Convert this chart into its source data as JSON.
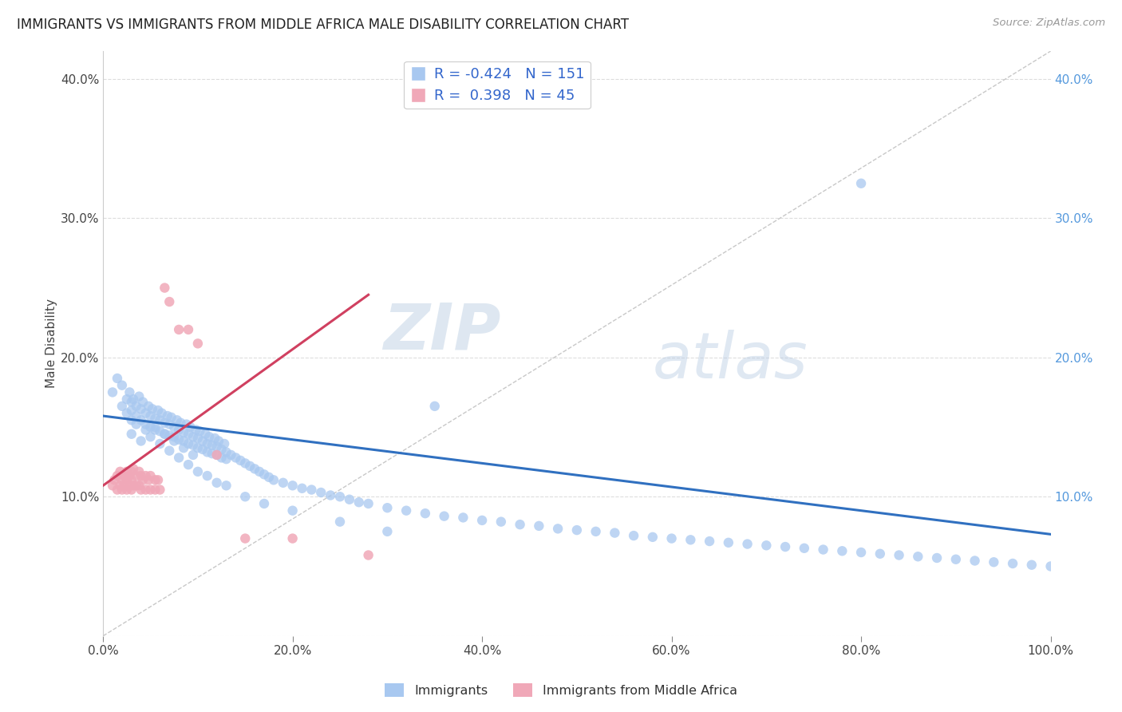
{
  "title": "IMMIGRANTS VS IMMIGRANTS FROM MIDDLE AFRICA MALE DISABILITY CORRELATION CHART",
  "source": "Source: ZipAtlas.com",
  "xlabel": "",
  "ylabel": "Male Disability",
  "xlim": [
    0,
    1.0
  ],
  "ylim": [
    0,
    0.42
  ],
  "xtick_vals": [
    0.0,
    0.2,
    0.4,
    0.6,
    0.8,
    1.0
  ],
  "xtick_labels": [
    "0.0%",
    "20.0%",
    "40.0%",
    "60.0%",
    "80.0%",
    "100.0%"
  ],
  "ytick_vals": [
    0.0,
    0.1,
    0.2,
    0.3,
    0.4
  ],
  "ytick_labels": [
    "",
    "10.0%",
    "20.0%",
    "30.0%",
    "40.0%"
  ],
  "legend1_r": "-0.424",
  "legend1_n": "151",
  "legend2_r": "0.398",
  "legend2_n": "45",
  "blue_color": "#a8c8f0",
  "pink_color": "#f0a8b8",
  "blue_line_color": "#3070c0",
  "pink_line_color": "#d04060",
  "diagonal_color": "#c8c8c8",
  "watermark_zip": "ZIP",
  "watermark_atlas": "atlas",
  "title_fontsize": 12,
  "blue_scatter_x": [
    0.01,
    0.015,
    0.02,
    0.02,
    0.025,
    0.025,
    0.028,
    0.03,
    0.03,
    0.03,
    0.032,
    0.035,
    0.035,
    0.038,
    0.04,
    0.04,
    0.042,
    0.045,
    0.045,
    0.048,
    0.05,
    0.05,
    0.052,
    0.055,
    0.055,
    0.058,
    0.06,
    0.06,
    0.062,
    0.065,
    0.065,
    0.068,
    0.07,
    0.07,
    0.072,
    0.075,
    0.075,
    0.078,
    0.08,
    0.08,
    0.082,
    0.085,
    0.085,
    0.088,
    0.09,
    0.09,
    0.092,
    0.095,
    0.095,
    0.098,
    0.1,
    0.1,
    0.102,
    0.105,
    0.105,
    0.108,
    0.11,
    0.11,
    0.112,
    0.115,
    0.115,
    0.118,
    0.12,
    0.12,
    0.122,
    0.125,
    0.125,
    0.128,
    0.13,
    0.13,
    0.135,
    0.14,
    0.145,
    0.15,
    0.155,
    0.16,
    0.165,
    0.17,
    0.175,
    0.18,
    0.19,
    0.2,
    0.21,
    0.22,
    0.23,
    0.24,
    0.25,
    0.26,
    0.27,
    0.28,
    0.3,
    0.32,
    0.34,
    0.36,
    0.38,
    0.4,
    0.42,
    0.44,
    0.46,
    0.48,
    0.5,
    0.52,
    0.54,
    0.56,
    0.58,
    0.6,
    0.62,
    0.64,
    0.66,
    0.68,
    0.7,
    0.72,
    0.74,
    0.76,
    0.78,
    0.8,
    0.82,
    0.84,
    0.86,
    0.88,
    0.9,
    0.92,
    0.94,
    0.96,
    0.98,
    1.0,
    0.03,
    0.035,
    0.04,
    0.045,
    0.05,
    0.055,
    0.06,
    0.065,
    0.07,
    0.075,
    0.08,
    0.085,
    0.09,
    0.095,
    0.1,
    0.11,
    0.12,
    0.13,
    0.15,
    0.17,
    0.2,
    0.25,
    0.3,
    0.35,
    0.8
  ],
  "blue_scatter_y": [
    0.175,
    0.185,
    0.165,
    0.18,
    0.17,
    0.16,
    0.175,
    0.168,
    0.155,
    0.162,
    0.17,
    0.165,
    0.158,
    0.172,
    0.163,
    0.155,
    0.168,
    0.16,
    0.152,
    0.165,
    0.158,
    0.15,
    0.163,
    0.156,
    0.148,
    0.162,
    0.155,
    0.147,
    0.16,
    0.153,
    0.145,
    0.158,
    0.152,
    0.144,
    0.157,
    0.15,
    0.143,
    0.155,
    0.148,
    0.141,
    0.153,
    0.146,
    0.14,
    0.152,
    0.145,
    0.138,
    0.15,
    0.143,
    0.137,
    0.148,
    0.142,
    0.135,
    0.147,
    0.14,
    0.134,
    0.145,
    0.138,
    0.132,
    0.143,
    0.137,
    0.131,
    0.142,
    0.136,
    0.13,
    0.14,
    0.134,
    0.128,
    0.138,
    0.132,
    0.127,
    0.13,
    0.128,
    0.126,
    0.124,
    0.122,
    0.12,
    0.118,
    0.116,
    0.114,
    0.112,
    0.11,
    0.108,
    0.106,
    0.105,
    0.103,
    0.101,
    0.1,
    0.098,
    0.096,
    0.095,
    0.092,
    0.09,
    0.088,
    0.086,
    0.085,
    0.083,
    0.082,
    0.08,
    0.079,
    0.077,
    0.076,
    0.075,
    0.074,
    0.072,
    0.071,
    0.07,
    0.069,
    0.068,
    0.067,
    0.066,
    0.065,
    0.064,
    0.063,
    0.062,
    0.061,
    0.06,
    0.059,
    0.058,
    0.057,
    0.056,
    0.055,
    0.054,
    0.053,
    0.052,
    0.051,
    0.05,
    0.145,
    0.152,
    0.14,
    0.148,
    0.143,
    0.15,
    0.138,
    0.145,
    0.133,
    0.14,
    0.128,
    0.135,
    0.123,
    0.13,
    0.118,
    0.115,
    0.11,
    0.108,
    0.1,
    0.095,
    0.09,
    0.082,
    0.075,
    0.165,
    0.325
  ],
  "pink_scatter_x": [
    0.01,
    0.012,
    0.015,
    0.015,
    0.018,
    0.018,
    0.02,
    0.02,
    0.022,
    0.022,
    0.025,
    0.025,
    0.025,
    0.028,
    0.028,
    0.03,
    0.03,
    0.03,
    0.032,
    0.032,
    0.035,
    0.035,
    0.038,
    0.038,
    0.04,
    0.04,
    0.042,
    0.045,
    0.045,
    0.048,
    0.05,
    0.05,
    0.055,
    0.055,
    0.058,
    0.06,
    0.065,
    0.07,
    0.08,
    0.09,
    0.1,
    0.12,
    0.15,
    0.2,
    0.28
  ],
  "pink_scatter_y": [
    0.108,
    0.112,
    0.105,
    0.115,
    0.108,
    0.118,
    0.112,
    0.105,
    0.115,
    0.108,
    0.118,
    0.112,
    0.105,
    0.115,
    0.108,
    0.118,
    0.112,
    0.105,
    0.12,
    0.108,
    0.115,
    0.108,
    0.118,
    0.108,
    0.115,
    0.105,
    0.112,
    0.115,
    0.105,
    0.112,
    0.115,
    0.105,
    0.112,
    0.105,
    0.112,
    0.105,
    0.25,
    0.24,
    0.22,
    0.22,
    0.21,
    0.13,
    0.07,
    0.07,
    0.058
  ],
  "blue_trend_x": [
    0.0,
    1.0
  ],
  "blue_trend_y": [
    0.158,
    0.073
  ],
  "pink_trend_x": [
    0.0,
    0.28
  ],
  "pink_trend_y": [
    0.108,
    0.245
  ]
}
